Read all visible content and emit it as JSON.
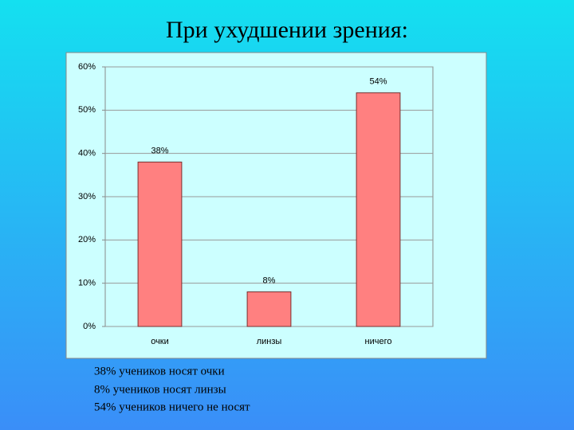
{
  "chart_data": {
    "type": "bar",
    "title": "При ухудшении зрения:",
    "categories": [
      "очки",
      "линзы",
      "ничего"
    ],
    "values": [
      38,
      8,
      54
    ],
    "value_labels": [
      "38%",
      "8%",
      "54%"
    ],
    "color": "#ff8080",
    "ylim": [
      0,
      60
    ],
    "yticks": [
      {
        "value": 0,
        "label": "0%"
      },
      {
        "value": 10,
        "label": "10%"
      },
      {
        "value": 20,
        "label": "20%"
      },
      {
        "value": 30,
        "label": "30%"
      },
      {
        "value": 40,
        "label": "40%"
      },
      {
        "value": 50,
        "label": "50%"
      },
      {
        "value": 60,
        "label": "60%"
      }
    ],
    "grid": true
  },
  "notes": [
    "38% учеников носят очки",
    "8% учеников носят линзы",
    "54% учеников ничего не носят"
  ]
}
